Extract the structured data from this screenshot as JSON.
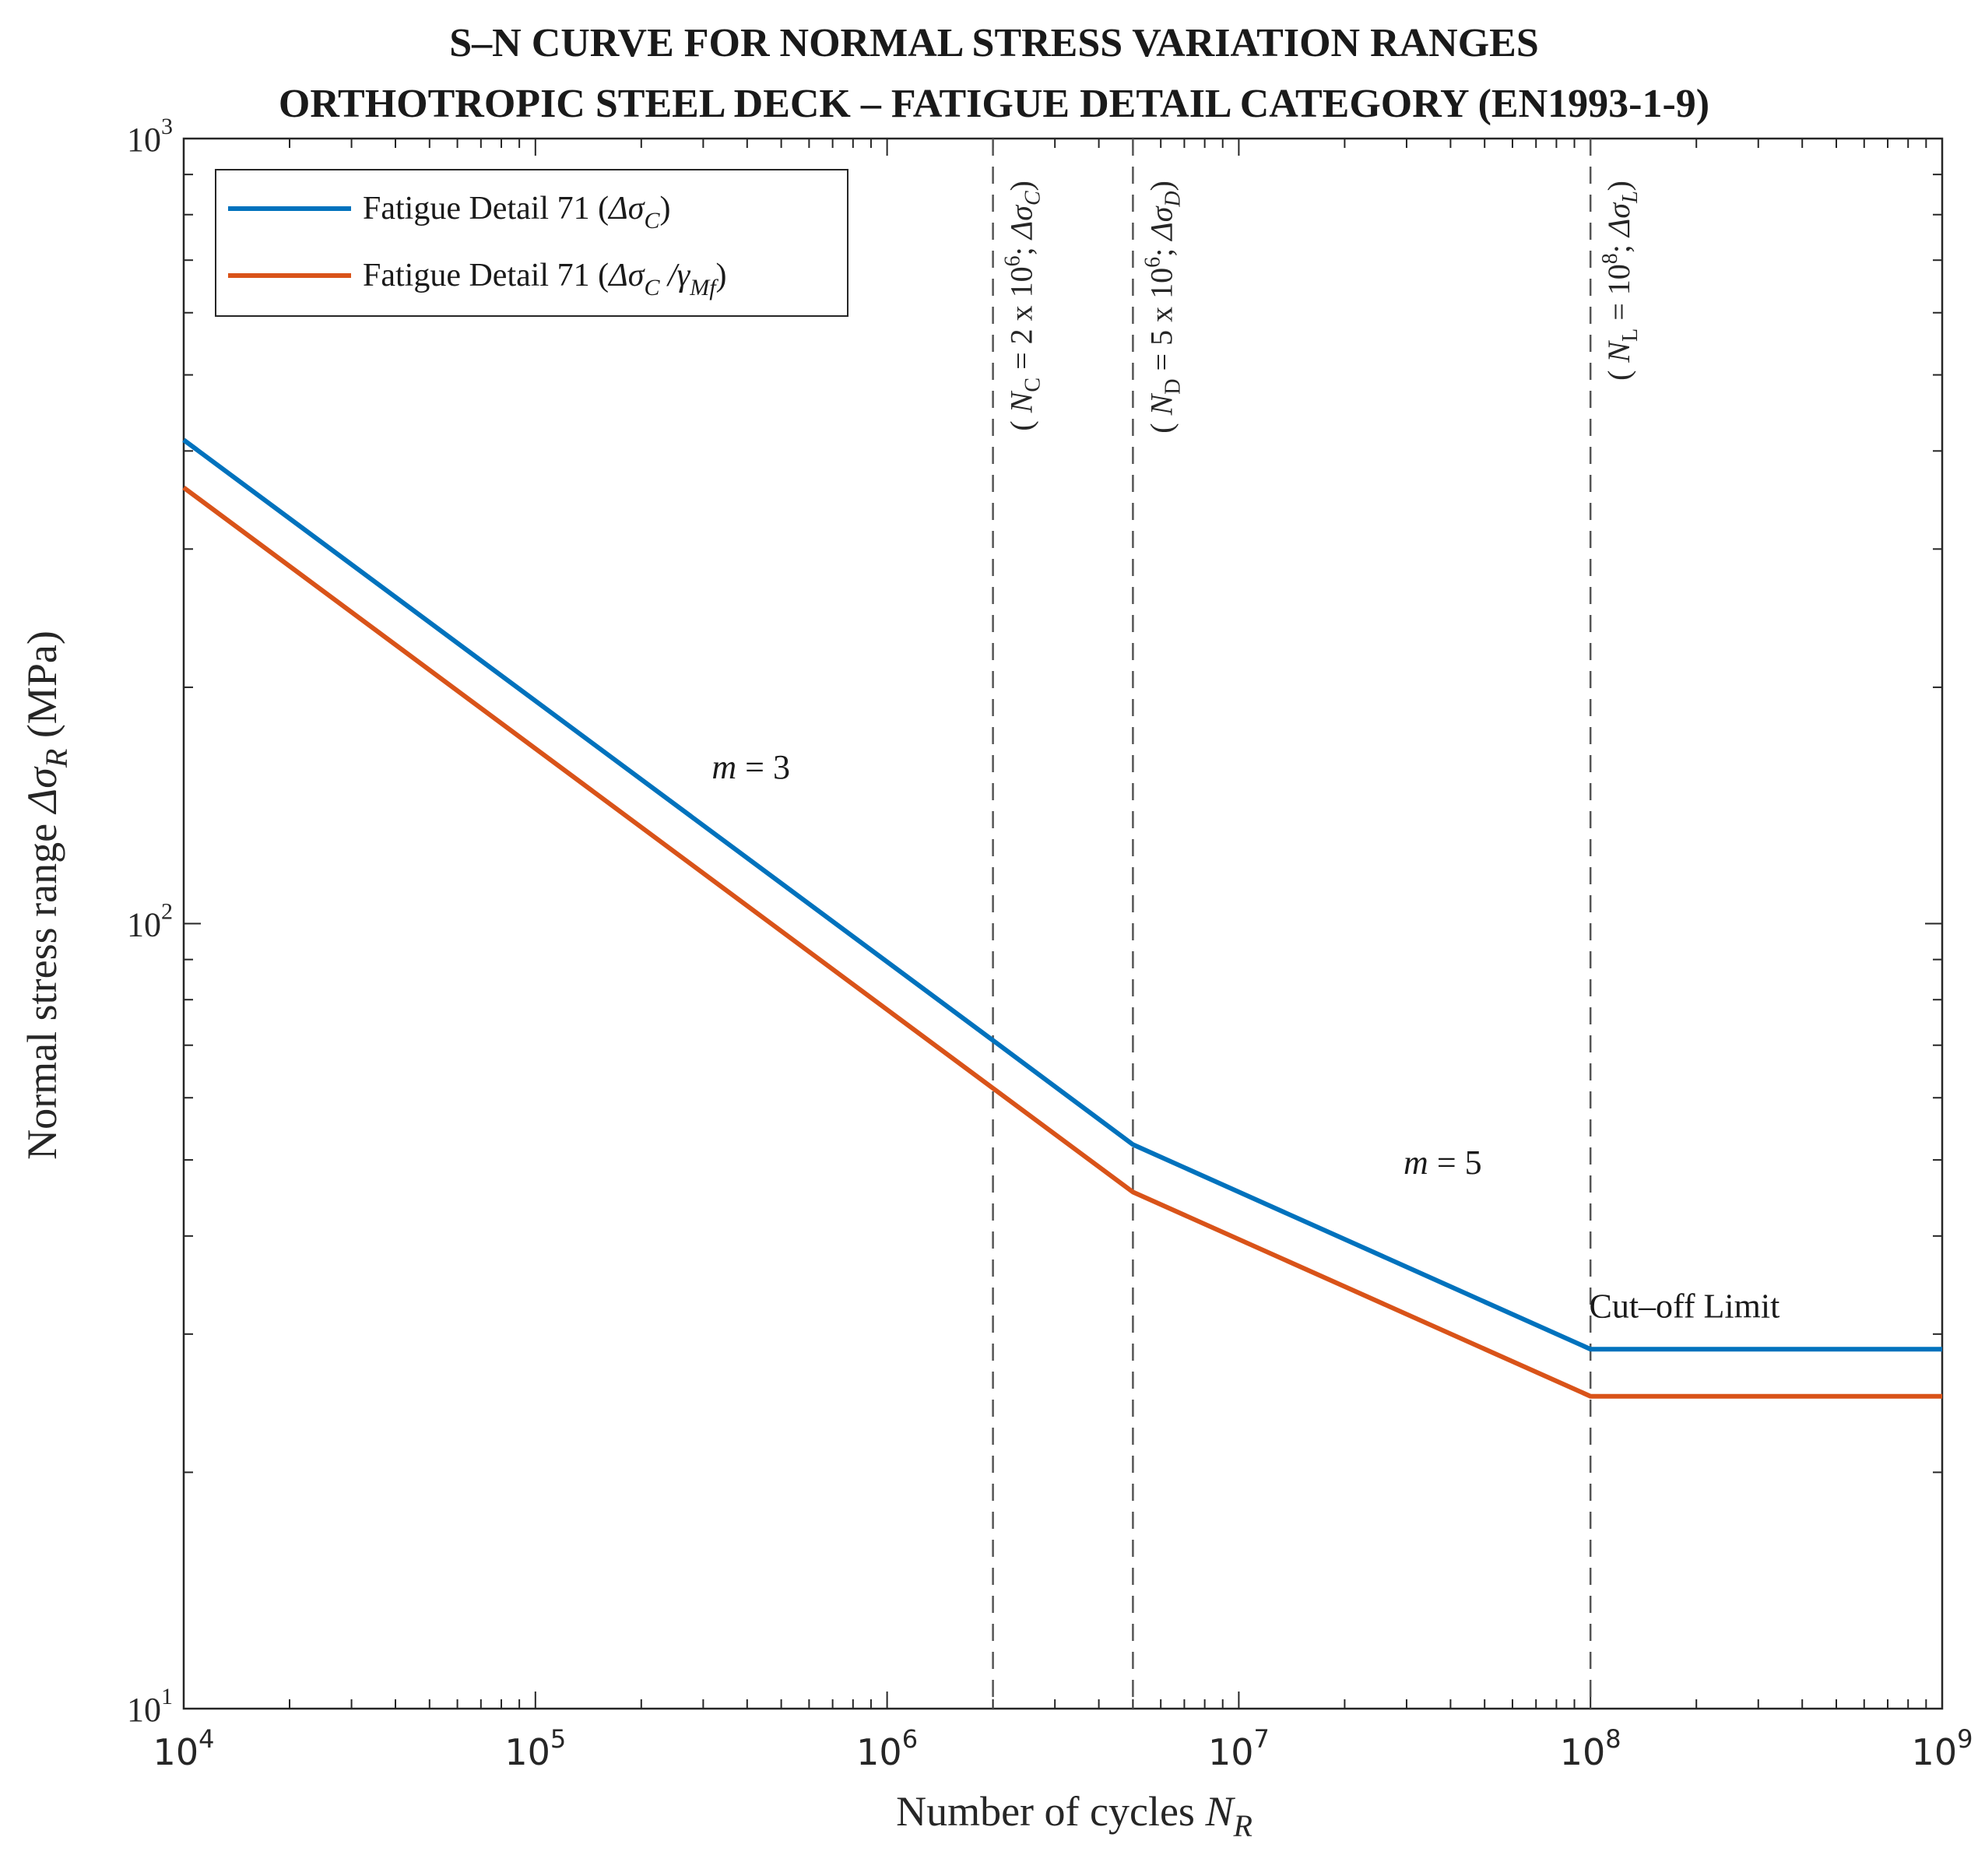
{
  "chart_data": {
    "type": "line",
    "title_line1": "S–N CURVE FOR NORMAL STRESS VARIATION RANGES",
    "title_line2": "ORTHOTROPIC STEEL DECK – FATIGUE DETAIL CATEGORY (EN1993-1-9)",
    "xlabel": {
      "main": "Number of cycles ",
      "sym": "N",
      "sub": "R"
    },
    "ylabel": {
      "main": "Normal stress range ",
      "sym": "Δσ",
      "sub": "R",
      "unit": " (MPa)"
    },
    "x_scale": "log",
    "y_scale": "log",
    "xlim": [
      10000,
      1000000000
    ],
    "ylim": [
      10,
      1000
    ],
    "x_ticks": [
      {
        "value": 10000,
        "base": "10",
        "exp": "4"
      },
      {
        "value": 100000,
        "base": "10",
        "exp": "5"
      },
      {
        "value": 1000000,
        "base": "10",
        "exp": "6"
      },
      {
        "value": 10000000,
        "base": "10",
        "exp": "7"
      },
      {
        "value": 100000000,
        "base": "10",
        "exp": "8"
      },
      {
        "value": 1000000000,
        "base": "10",
        "exp": "9"
      }
    ],
    "y_ticks": [
      {
        "value": 10,
        "base": "10",
        "exp": "1"
      },
      {
        "value": 100,
        "base": "10",
        "exp": "2"
      },
      {
        "value": 1000,
        "base": "10",
        "exp": "3"
      }
    ],
    "series": [
      {
        "name": "Fatigue Detail 71 (ΔσC)",
        "legend": {
          "pre": "Fatigue Detail 71 (",
          "sym": "Δσ",
          "sub": "C",
          "post": ")"
        },
        "color": "#0072BD",
        "points": [
          [
            10000,
            413.1
          ],
          [
            2000000,
            71.0
          ],
          [
            5000000,
            52.3
          ],
          [
            100000000,
            28.7
          ],
          [
            1000000000,
            28.7
          ]
        ]
      },
      {
        "name": "Fatigue Detail 71 (ΔσC/γMf)",
        "legend": {
          "pre": "Fatigue Detail 71 (",
          "sym": "Δσ",
          "sub": "C",
          "mid": " /γ",
          "sub2": "Mf",
          "post": ")"
        },
        "color": "#D95319",
        "points": [
          [
            10000,
            359.2
          ],
          [
            2000000,
            61.7
          ],
          [
            5000000,
            45.5
          ],
          [
            100000000,
            25.0
          ],
          [
            1000000000,
            25.0
          ]
        ]
      }
    ],
    "vlines": [
      {
        "x": 2000000,
        "label": {
          "pre": "( ",
          "sym": "N",
          "sub": "C",
          "mid": " = 2 x 10",
          "sup": "6",
          "semi": "; ",
          "sym2": "Δσ",
          "sub2": "C",
          "post": ")"
        }
      },
      {
        "x": 5000000,
        "label": {
          "pre": "( ",
          "sym": "N",
          "sub": "D",
          "mid": " = 5 x 10",
          "sup": "6",
          "semi": "; ",
          "sym2": "Δσ",
          "sub2": "D",
          "post": ")"
        }
      },
      {
        "x": 100000000,
        "label": {
          "pre": "( ",
          "sym": "N",
          "sub": "L",
          "mid": " = 10",
          "sup": "8",
          "semi": "; ",
          "sym2": "Δσ",
          "sub2": "L",
          "post": ")"
        }
      }
    ],
    "annotations": [
      {
        "id": "slope-m3",
        "sym": "m",
        "text": " = 3",
        "x": 410000,
        "y": 153
      },
      {
        "id": "slope-m5",
        "sym": "m",
        "text": " = 5",
        "x": 38000,
        "y": 48
      },
      {
        "id": "cutoff",
        "text": "Cut–off Limit",
        "x": 185000000,
        "y": 31.5
      }
    ],
    "legend_position": "top-left",
    "grid": false
  }
}
